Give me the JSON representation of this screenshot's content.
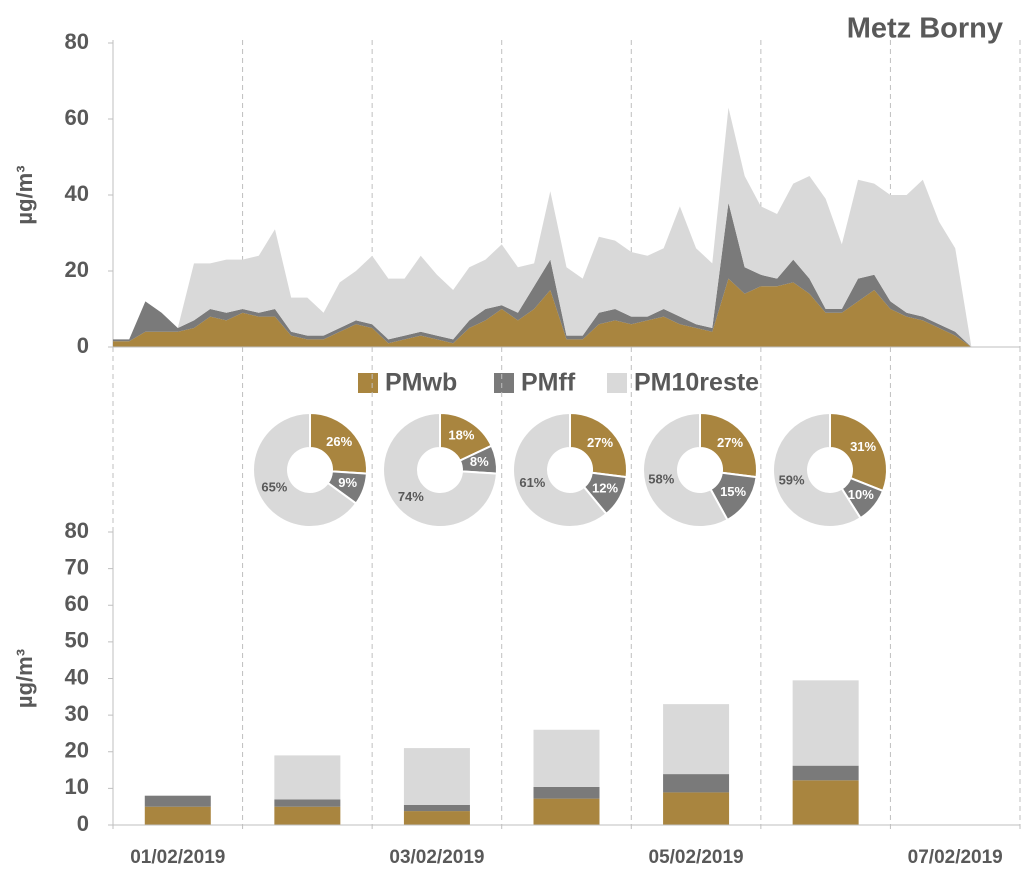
{
  "chart_data": [
    {
      "type": "area",
      "title": "Metz Borny",
      "y_label": "µg/m³",
      "x": [
        0,
        3,
        6,
        9,
        12,
        15,
        18,
        21,
        24,
        27,
        30,
        33,
        36,
        39,
        42,
        45,
        48,
        51,
        54,
        57,
        60,
        63,
        66,
        69,
        72,
        75,
        78,
        81,
        84,
        87,
        90,
        93,
        96,
        99,
        102,
        105,
        108,
        111,
        114,
        117,
        120,
        123,
        126,
        129,
        132,
        135,
        138,
        141,
        144,
        147,
        150,
        153,
        156,
        159
      ],
      "xlim": [
        0,
        168
      ],
      "xticks": [
        0,
        24,
        48,
        72,
        96,
        120,
        144,
        168
      ],
      "ylim": [
        0,
        80
      ],
      "yticks": [
        0,
        20,
        40,
        60,
        80
      ],
      "series": [
        {
          "name": "PMwb",
          "color": "#a9853f",
          "values": [
            1.5,
            1.5,
            4,
            4,
            4,
            5,
            8,
            7,
            9,
            8,
            8,
            3,
            2,
            2,
            4,
            6,
            5,
            1,
            2,
            3,
            2,
            1,
            5,
            7,
            10,
            7,
            10,
            15,
            2,
            2,
            6,
            7,
            6,
            7,
            8,
            6,
            5,
            4,
            18,
            14,
            16,
            16,
            17,
            14,
            9,
            9,
            12,
            15,
            10,
            8,
            7,
            5,
            3,
            0
          ]
        },
        {
          "name": "PMff",
          "color": "#7a7a7a",
          "values": [
            0.5,
            0.5,
            8,
            5,
            1,
            2,
            2,
            2,
            1,
            1,
            2,
            1,
            1,
            1,
            1,
            1,
            1,
            1,
            1,
            1,
            1,
            1,
            2,
            3,
            1,
            2,
            6,
            8,
            1,
            1,
            3,
            3,
            2,
            1,
            2,
            2,
            1,
            1,
            20,
            7,
            3,
            2,
            6,
            4,
            1,
            1,
            6,
            4,
            2,
            1,
            1,
            1,
            1,
            0
          ]
        },
        {
          "name": "PM10reste",
          "color": "#d9d9d9",
          "values": [
            0,
            0,
            0,
            0,
            0,
            15,
            12,
            14,
            13,
            15,
            21,
            9,
            10,
            6,
            12,
            13,
            18,
            16,
            15,
            20,
            16,
            13,
            14,
            13,
            16,
            12,
            6,
            18,
            18,
            15,
            20,
            18,
            17,
            16,
            16,
            29,
            20,
            17,
            25,
            24,
            18,
            17,
            20,
            27,
            29,
            17,
            26,
            24,
            28,
            31,
            36,
            27,
            22,
            0
          ]
        }
      ]
    },
    {
      "type": "pie",
      "colors": [
        "#a9853f",
        "#7a7a7a",
        "#d9d9d9"
      ],
      "values": [
        26,
        9,
        65
      ],
      "value_labels": [
        "26%",
        "9%",
        "65%"
      ]
    },
    {
      "type": "pie",
      "colors": [
        "#a9853f",
        "#7a7a7a",
        "#d9d9d9"
      ],
      "values": [
        18,
        8,
        74
      ],
      "value_labels": [
        "18%",
        "8%",
        "74%"
      ]
    },
    {
      "type": "pie",
      "colors": [
        "#a9853f",
        "#7a7a7a",
        "#d9d9d9"
      ],
      "values": [
        27,
        12,
        61
      ],
      "value_labels": [
        "27%",
        "12%",
        "61%"
      ]
    },
    {
      "type": "pie",
      "colors": [
        "#a9853f",
        "#7a7a7a",
        "#d9d9d9"
      ],
      "values": [
        27,
        15,
        58
      ],
      "value_labels": [
        "27%",
        "15%",
        "58%"
      ]
    },
    {
      "type": "pie",
      "colors": [
        "#a9853f",
        "#7a7a7a",
        "#d9d9d9"
      ],
      "values": [
        31,
        10,
        59
      ],
      "value_labels": [
        "31%",
        "10%",
        "59%"
      ]
    },
    {
      "type": "bar",
      "stacked": true,
      "y_label": "µg/m³",
      "categories": [
        "01/02/2019",
        null,
        "03/02/2019",
        null,
        "05/02/2019",
        null,
        "07/02/2019"
      ],
      "ylim": [
        0,
        80
      ],
      "yticks": [
        0,
        10,
        20,
        30,
        40,
        50,
        60,
        70,
        80
      ],
      "series": [
        {
          "color": "#a9853f",
          "values": [
            5,
            5,
            3.8,
            7.2,
            8.9,
            12.2,
            null
          ]
        },
        {
          "color": "#7a7a7a",
          "values": [
            3,
            2,
            1.7,
            3.2,
            5,
            4,
            null
          ]
        },
        {
          "color": "#d9d9d9",
          "values": [
            0,
            12,
            15.5,
            15.6,
            19.1,
            23.3,
            null
          ]
        }
      ]
    }
  ]
}
